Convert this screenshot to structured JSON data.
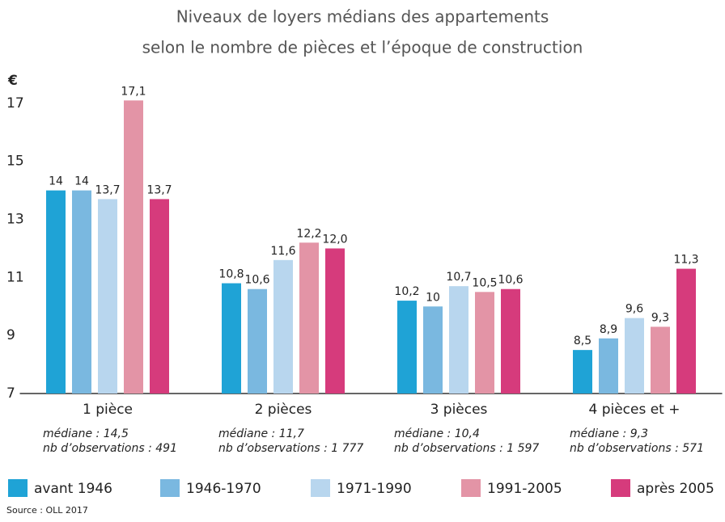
{
  "chart_data": {
    "type": "bar",
    "title": [
      "Niveaux de loyers médians des appartements",
      "selon le nombre de pièces et l’époque de construction"
    ],
    "y_label": "€",
    "categories": [
      "1 pièce",
      "2 pièces",
      "3 pièces",
      "4 pièces et +"
    ],
    "category_notes": [
      [
        "médiane : 14,5",
        "nb d’observations : 491"
      ],
      [
        "médiane : 11,7",
        "nb d’observations : 1 777"
      ],
      [
        "médiane : 10,4",
        "nb d’observations : 1 597"
      ],
      [
        "médiane : 9,3",
        "nb d’observations : 571"
      ]
    ],
    "series": [
      {
        "name": "avant 1946",
        "color": "#1fa3d6",
        "values": [
          14,
          10.8,
          10.2,
          8.5
        ],
        "value_labels": [
          "14",
          "10,8",
          "10,2",
          "8,5"
        ]
      },
      {
        "name": "1946-1970",
        "color": "#7ab8e0",
        "values": [
          14,
          10.6,
          10,
          8.9
        ],
        "value_labels": [
          "14",
          "10,6",
          "10",
          "8,9"
        ]
      },
      {
        "name": "1971-1990",
        "color": "#b8d6ee",
        "values": [
          13.7,
          11.6,
          10.7,
          9.6
        ],
        "value_labels": [
          "13,7",
          "11,6",
          "10,7",
          "9,6"
        ]
      },
      {
        "name": "1991-2005",
        "color": "#e394a6",
        "values": [
          17.1,
          12.2,
          10.5,
          9.3
        ],
        "value_labels": [
          "17,1",
          "12,2",
          "10,5",
          "9,3"
        ]
      },
      {
        "name": "après 2005",
        "color": "#d63b7c",
        "values": [
          13.7,
          12.0,
          10.6,
          11.3
        ],
        "value_labels": [
          "13,7",
          "12,0",
          "10,6",
          "11,3"
        ]
      }
    ],
    "ylim": [
      7,
      18
    ],
    "yticks": [
      7,
      9,
      11,
      13,
      15,
      17
    ],
    "grid": false,
    "legend": "bottom",
    "source": "Source : OLL 2017"
  }
}
